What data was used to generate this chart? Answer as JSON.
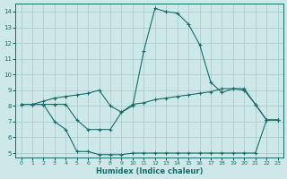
{
  "xlabel": "Humidex (Indice chaleur)",
  "background_color": "#cce8e8",
  "grid_color": "#aac8c8",
  "line_color": "#1a6b6b",
  "xlim": [
    -0.5,
    23.5
  ],
  "ylim": [
    4.7,
    14.5
  ],
  "xticks": [
    0,
    1,
    2,
    3,
    4,
    5,
    6,
    7,
    8,
    9,
    10,
    11,
    12,
    13,
    14,
    15,
    16,
    17,
    18,
    19,
    20,
    21,
    22,
    23
  ],
  "yticks": [
    5,
    6,
    7,
    8,
    9,
    10,
    11,
    12,
    13,
    14
  ],
  "curve1_x": [
    0,
    1,
    2,
    3,
    4,
    5,
    6,
    7,
    8,
    9,
    10,
    11,
    12,
    13,
    14,
    15,
    16,
    17,
    18,
    19,
    20,
    21,
    22,
    23
  ],
  "curve1_y": [
    8.1,
    8.1,
    8.1,
    7.0,
    6.5,
    5.1,
    5.1,
    4.9,
    4.9,
    4.9,
    5.0,
    5.0,
    5.0,
    5.0,
    5.0,
    5.0,
    5.0,
    5.0,
    5.0,
    5.0,
    5.0,
    5.0,
    7.1,
    7.1
  ],
  "curve2_x": [
    0,
    1,
    2,
    3,
    4,
    5,
    6,
    7,
    8,
    9,
    10,
    11,
    12,
    13,
    14,
    15,
    16,
    17,
    18,
    19,
    20,
    21,
    22,
    23
  ],
  "curve2_y": [
    8.1,
    8.1,
    8.3,
    8.5,
    8.6,
    8.7,
    8.8,
    9.0,
    8.0,
    7.6,
    8.1,
    8.2,
    8.4,
    8.5,
    8.6,
    8.7,
    8.8,
    8.9,
    9.1,
    9.1,
    9.0,
    8.1,
    7.1,
    7.1
  ],
  "curve3_x": [
    0,
    1,
    2,
    3,
    4,
    5,
    6,
    7,
    8,
    9,
    10,
    11,
    12,
    13,
    14,
    15,
    16,
    17,
    18,
    19,
    20,
    21,
    22,
    23
  ],
  "curve3_y": [
    8.1,
    8.1,
    8.1,
    8.1,
    8.1,
    7.1,
    6.5,
    6.5,
    6.5,
    7.6,
    8.0,
    11.5,
    14.2,
    14.0,
    13.9,
    13.2,
    11.9,
    9.5,
    8.85,
    9.1,
    9.1,
    8.1,
    7.1,
    7.1
  ]
}
